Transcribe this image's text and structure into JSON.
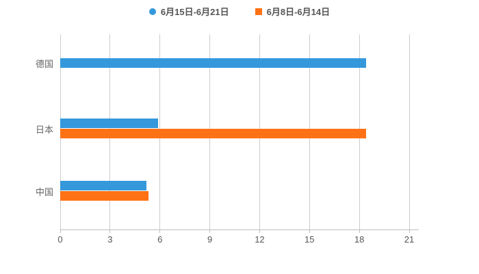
{
  "chart_data": {
    "type": "bar",
    "orientation": "horizontal",
    "categories": [
      "德国",
      "日本",
      "中国"
    ],
    "series": [
      {
        "name": "6月15日-6月21日",
        "color": "#3498DB",
        "marker": "circle",
        "values": [
          18.4,
          5.9,
          5.2
        ]
      },
      {
        "name": "6月8日-6月14日",
        "color": "#FF7115",
        "marker": "square",
        "values": [
          null,
          18.4,
          5.3
        ]
      }
    ],
    "x_ticks": [
      "0",
      "3",
      "6",
      "9",
      "12",
      "15",
      "18",
      "21"
    ],
    "xlim": [
      0,
      21
    ],
    "grid": true,
    "legend_position": "top-center"
  },
  "colors": {
    "background": "#FFFFFF",
    "grid_line": "#CCCCCC",
    "axis_line": "#BBBBBB",
    "tick_label": "#555555",
    "category_label": "#666666",
    "legend_text": "#555555",
    "series_blue": "#3498DB",
    "series_orange": "#FF7115"
  }
}
